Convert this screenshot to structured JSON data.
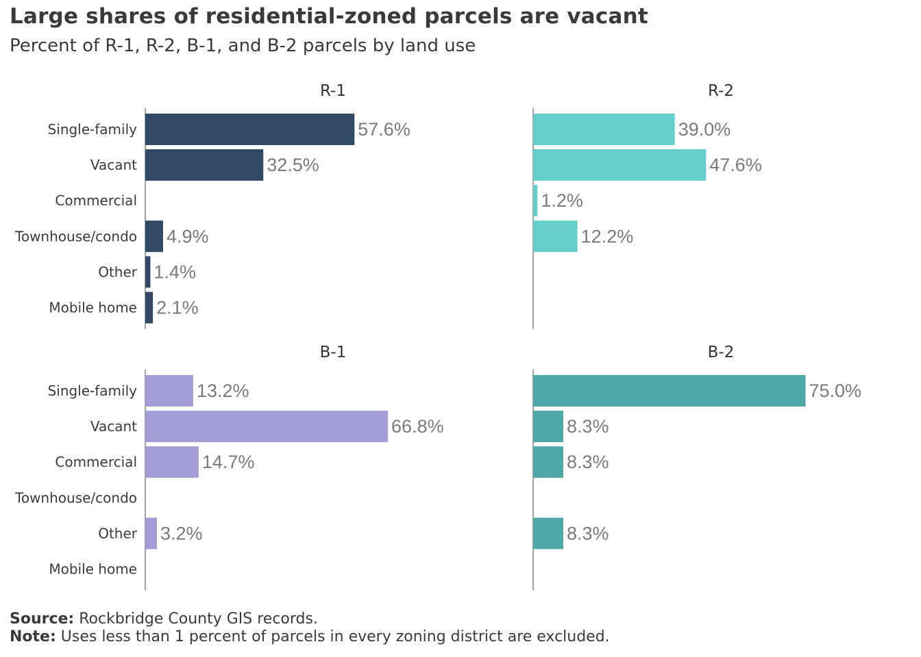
{
  "title": "Large shares of residential-zoned parcels are vacant",
  "subtitle": "Percent of R-1, R-2, B-1, and B-2 parcels by land use",
  "footer": {
    "source_label": "Source:",
    "source_text": " Rockbridge County GIS records.",
    "note_label": "Note:",
    "note_text": " Uses less than 1 percent of parcels in every zoning district are excluded."
  },
  "chart_data": [
    {
      "type": "bar",
      "title": "R-1",
      "color": "#324966",
      "categories": [
        "Single-family",
        "Vacant",
        "Commercial",
        "Townhouse/condo",
        "Other",
        "Mobile home"
      ],
      "values": [
        57.6,
        32.5,
        null,
        4.9,
        1.4,
        2.1
      ],
      "labels": [
        "57.6%",
        "32.5%",
        "",
        "4.9%",
        "1.4%",
        "2.1%"
      ],
      "xlim": [
        0,
        100
      ]
    },
    {
      "type": "bar",
      "title": "R-2",
      "color": "#67CDCA",
      "categories": [
        "Single-family",
        "Vacant",
        "Commercial",
        "Townhouse/condo",
        "Other",
        "Mobile home"
      ],
      "values": [
        39.0,
        47.6,
        1.2,
        12.2,
        null,
        null
      ],
      "labels": [
        "39.0%",
        "47.6%",
        "1.2%",
        "12.2%",
        "",
        ""
      ],
      "xlim": [
        0,
        100
      ]
    },
    {
      "type": "bar",
      "title": "B-1",
      "color": "#A39DD5",
      "categories": [
        "Single-family",
        "Vacant",
        "Commercial",
        "Townhouse/condo",
        "Other",
        "Mobile home"
      ],
      "values": [
        13.2,
        66.8,
        14.7,
        null,
        3.2,
        null
      ],
      "labels": [
        "13.2%",
        "66.8%",
        "14.7%",
        "",
        "3.2%",
        ""
      ],
      "xlim": [
        0,
        100
      ]
    },
    {
      "type": "bar",
      "title": "B-2",
      "color": "#50A9A8",
      "categories": [
        "Single-family",
        "Vacant",
        "Commercial",
        "Townhouse/condo",
        "Other",
        "Mobile home"
      ],
      "values": [
        75.0,
        8.3,
        8.3,
        null,
        8.3,
        null
      ],
      "labels": [
        "75.0%",
        "8.3%",
        "8.3%",
        "",
        "8.3%",
        ""
      ],
      "xlim": [
        0,
        100
      ]
    }
  ]
}
